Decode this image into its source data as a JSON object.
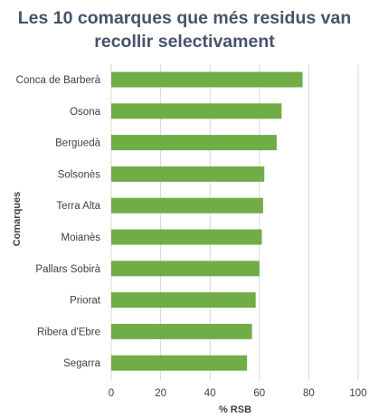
{
  "chart_data": {
    "type": "bar",
    "orientation": "horizontal",
    "title": "Les 10 comarques que més residus van recollir selectivament",
    "xlabel": "% RSB",
    "ylabel": "Comarques",
    "categories": [
      "Conca de Barberà",
      "Osona",
      "Berguedà",
      "Solsonès",
      "Terra Alta",
      "Moianès",
      "Pallars Sobirà",
      "Priorat",
      "Ribera d'Ebre",
      "Segarra"
    ],
    "values": [
      77.5,
      69,
      67,
      62,
      61.5,
      61,
      60,
      58.5,
      57,
      55
    ],
    "xlim": [
      0,
      100
    ],
    "xticks": [
      "0",
      "20",
      "40",
      "60",
      "80",
      "100"
    ],
    "grid": "vertical",
    "legend": "none",
    "bar_color": "#70AD47",
    "grid_color": "#D9D9D9"
  }
}
